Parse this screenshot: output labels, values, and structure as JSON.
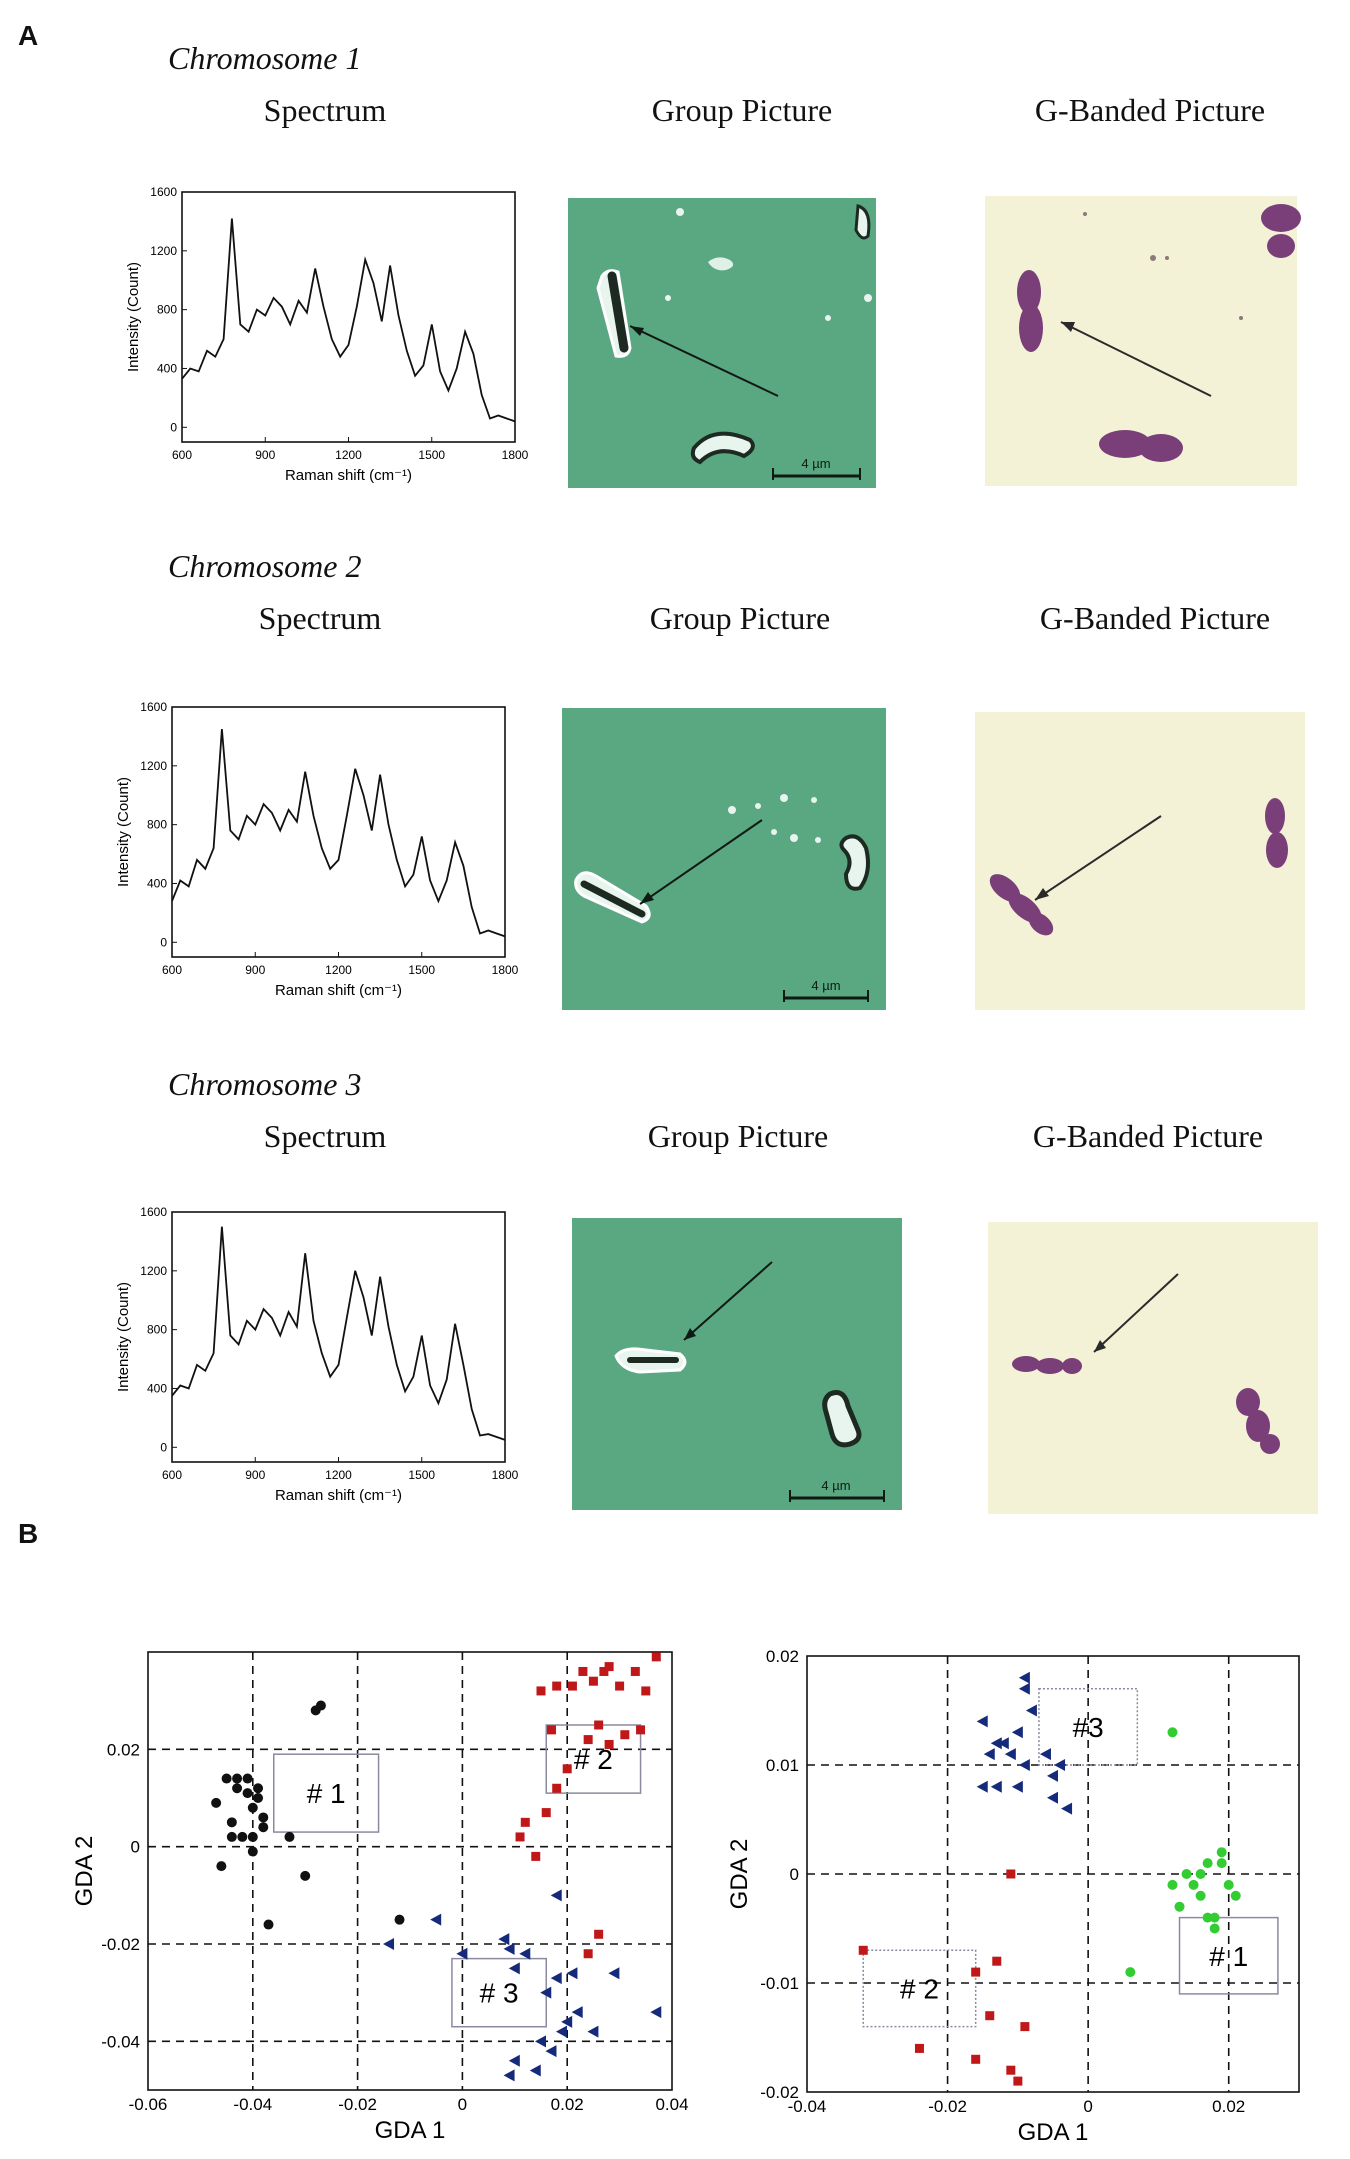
{
  "panel_a": {
    "label": "A",
    "column_titles": [
      "Spectrum",
      "Group Picture",
      "G-Banded Picture"
    ],
    "rows": [
      {
        "title": "Chromosome 1",
        "scale_label": "4 µm"
      },
      {
        "title": "Chromosome 2",
        "scale_label": "4 µm"
      },
      {
        "title": "Chromosome 3",
        "scale_label": "4 µm"
      }
    ],
    "colors": {
      "group_bg": "#5aa882",
      "gband_bg": "#f3f2d6",
      "chromosome_stain": "#7a3f78"
    }
  },
  "panel_b": {
    "label": "B"
  },
  "chart_data": [
    {
      "type": "line",
      "id": "spectrum-1",
      "xlabel": "Raman shift (cm⁻¹)",
      "ylabel": "Intensity (Count)",
      "xlim": [
        600,
        1800
      ],
      "ylim": [
        -100,
        1600
      ],
      "xticks": [
        600,
        900,
        1200,
        1500,
        1800
      ],
      "yticks": [
        0,
        400,
        800,
        1200,
        1600
      ],
      "series": [
        {
          "x": [
            600,
            630,
            660,
            690,
            720,
            750,
            780,
            810,
            840,
            870,
            900,
            930,
            960,
            990,
            1020,
            1050,
            1080,
            1110,
            1140,
            1170,
            1200,
            1230,
            1260,
            1290,
            1320,
            1350,
            1380,
            1410,
            1440,
            1470,
            1500,
            1530,
            1560,
            1590,
            1620,
            1650,
            1680,
            1710,
            1740,
            1770,
            1800
          ],
          "y": [
            330,
            400,
            380,
            520,
            480,
            600,
            1420,
            700,
            650,
            800,
            760,
            880,
            820,
            700,
            860,
            780,
            1080,
            820,
            600,
            480,
            560,
            820,
            1140,
            980,
            720,
            1100,
            760,
            520,
            350,
            420,
            700,
            380,
            250,
            400,
            650,
            500,
            220,
            60,
            80,
            60,
            40
          ]
        }
      ]
    },
    {
      "type": "line",
      "id": "spectrum-2",
      "xlabel": "Raman shift (cm⁻¹)",
      "ylabel": "Intensity (Count)",
      "xlim": [
        600,
        1800
      ],
      "ylim": [
        -100,
        1600
      ],
      "xticks": [
        600,
        900,
        1200,
        1500,
        1800
      ],
      "yticks": [
        0,
        400,
        800,
        1200,
        1600
      ],
      "series": [
        {
          "x": [
            600,
            630,
            660,
            690,
            720,
            750,
            780,
            810,
            840,
            870,
            900,
            930,
            960,
            990,
            1020,
            1050,
            1080,
            1110,
            1140,
            1170,
            1200,
            1230,
            1260,
            1290,
            1320,
            1350,
            1380,
            1410,
            1440,
            1470,
            1500,
            1530,
            1560,
            1590,
            1620,
            1650,
            1680,
            1710,
            1740,
            1770,
            1800
          ],
          "y": [
            280,
            420,
            380,
            560,
            500,
            640,
            1450,
            760,
            700,
            860,
            800,
            940,
            880,
            760,
            900,
            820,
            1160,
            860,
            640,
            500,
            560,
            860,
            1180,
            1000,
            760,
            1140,
            800,
            560,
            380,
            460,
            720,
            420,
            280,
            420,
            680,
            520,
            240,
            60,
            80,
            60,
            40
          ]
        }
      ]
    },
    {
      "type": "line",
      "id": "spectrum-3",
      "xlabel": "Raman shift (cm⁻¹)",
      "ylabel": "Intensity (Count)",
      "xlim": [
        600,
        1800
      ],
      "ylim": [
        -100,
        1600
      ],
      "xticks": [
        600,
        900,
        1200,
        1500,
        1800
      ],
      "yticks": [
        0,
        400,
        800,
        1200,
        1600
      ],
      "series": [
        {
          "x": [
            600,
            630,
            660,
            690,
            720,
            750,
            780,
            810,
            840,
            870,
            900,
            930,
            960,
            990,
            1020,
            1050,
            1080,
            1110,
            1140,
            1170,
            1200,
            1230,
            1260,
            1290,
            1320,
            1350,
            1380,
            1410,
            1440,
            1470,
            1500,
            1530,
            1560,
            1590,
            1620,
            1650,
            1680,
            1710,
            1740,
            1770,
            1800
          ],
          "y": [
            350,
            420,
            400,
            560,
            520,
            640,
            1500,
            760,
            700,
            860,
            800,
            940,
            880,
            760,
            920,
            820,
            1320,
            860,
            640,
            480,
            560,
            880,
            1200,
            1020,
            760,
            1160,
            820,
            560,
            380,
            480,
            760,
            420,
            300,
            460,
            840,
            560,
            260,
            80,
            90,
            70,
            50
          ]
        }
      ]
    },
    {
      "type": "scatter",
      "id": "gda-left",
      "xlabel": "GDA 1",
      "ylabel": "GDA 2",
      "xlim": [
        -0.06,
        0.04
      ],
      "ylim": [
        -0.05,
        0.04
      ],
      "xticks": [
        -0.06,
        -0.04,
        -0.02,
        0,
        0.02,
        0.04
      ],
      "xtick_labels": [
        "-0.06",
        "-0.04",
        "-0.02",
        "0",
        "0.02",
        "0.04"
      ],
      "yticks": [
        -0.04,
        -0.02,
        0,
        0.02
      ],
      "ytick_labels": [
        "-0.04",
        "-0.02",
        "0",
        "0.02"
      ],
      "grid": true,
      "series": [
        {
          "marker": "circle",
          "color": "#111111",
          "x": [
            -0.047,
            -0.045,
            -0.043,
            -0.044,
            -0.041,
            -0.04,
            -0.039,
            -0.042,
            -0.04,
            -0.038,
            -0.041,
            -0.044,
            -0.046,
            -0.039,
            -0.037,
            -0.043,
            -0.04,
            -0.033,
            -0.03,
            -0.028,
            -0.027,
            -0.038,
            -0.012
          ],
          "y": [
            0.009,
            0.014,
            0.014,
            0.005,
            0.011,
            0.008,
            0.01,
            0.002,
            0.002,
            0.004,
            0.014,
            0.002,
            -0.004,
            0.012,
            -0.016,
            0.012,
            -0.001,
            0.002,
            -0.006,
            0.028,
            0.029,
            0.006,
            -0.015
          ]
        },
        {
          "marker": "square",
          "color": "#c01818",
          "x": [
            0.015,
            0.018,
            0.021,
            0.023,
            0.025,
            0.027,
            0.028,
            0.03,
            0.033,
            0.035,
            0.037,
            0.017,
            0.024,
            0.026,
            0.028,
            0.031,
            0.034,
            0.02,
            0.018,
            0.016,
            0.012,
            0.011,
            0.014,
            0.026,
            0.024
          ],
          "y": [
            0.032,
            0.033,
            0.033,
            0.036,
            0.034,
            0.036,
            0.037,
            0.033,
            0.036,
            0.032,
            0.039,
            0.024,
            0.022,
            0.025,
            0.021,
            0.023,
            0.024,
            0.016,
            0.012,
            0.007,
            0.005,
            0.002,
            -0.002,
            -0.018,
            -0.022
          ]
        },
        {
          "marker": "triangle-left",
          "color": "#152a7a",
          "x": [
            -0.005,
            -0.014,
            0.0,
            0.008,
            0.009,
            0.01,
            0.012,
            0.016,
            0.018,
            0.021,
            0.022,
            0.029,
            0.025,
            0.02,
            0.019,
            0.015,
            0.017,
            0.01,
            0.009,
            0.014,
            0.037,
            0.018
          ],
          "y": [
            -0.015,
            -0.02,
            -0.022,
            -0.019,
            -0.021,
            -0.025,
            -0.022,
            -0.03,
            -0.027,
            -0.026,
            -0.034,
            -0.026,
            -0.038,
            -0.036,
            -0.038,
            -0.04,
            -0.042,
            -0.044,
            -0.047,
            -0.046,
            -0.034,
            -0.01
          ]
        }
      ],
      "annotations": [
        {
          "text": "# 1",
          "x0": -0.036,
          "x1": -0.016,
          "y0": 0.003,
          "y1": 0.019,
          "box": "solid"
        },
        {
          "text": "# 2",
          "x0": 0.016,
          "x1": 0.034,
          "y0": 0.011,
          "y1": 0.025,
          "box": "solid"
        },
        {
          "text": "# 3",
          "x0": -0.002,
          "x1": 0.016,
          "y0": -0.037,
          "y1": -0.023,
          "box": "solid"
        }
      ]
    },
    {
      "type": "scatter",
      "id": "gda-right",
      "xlabel": "GDA 1",
      "ylabel": "GDA 2",
      "xlim": [
        -0.04,
        0.03
      ],
      "ylim": [
        -0.02,
        0.02
      ],
      "xticks": [
        -0.04,
        -0.02,
        0,
        0.02
      ],
      "xtick_labels": [
        "-0.04",
        "-0.02",
        "0",
        "0.02"
      ],
      "yticks": [
        -0.02,
        -0.01,
        0,
        0.01,
        0.02
      ],
      "ytick_labels": [
        "-0.02",
        "-0.01",
        "0",
        "0.01",
        "0.02"
      ],
      "grid": true,
      "series": [
        {
          "marker": "triangle-left",
          "color": "#152a7a",
          "x": [
            -0.009,
            -0.009,
            -0.008,
            -0.015,
            -0.013,
            -0.012,
            -0.01,
            -0.014,
            -0.011,
            -0.009,
            -0.006,
            -0.005,
            -0.004,
            -0.015,
            -0.013,
            -0.01,
            -0.005,
            -0.003
          ],
          "y": [
            0.018,
            0.017,
            0.015,
            0.014,
            0.012,
            0.012,
            0.013,
            0.011,
            0.011,
            0.01,
            0.011,
            0.009,
            0.01,
            0.008,
            0.008,
            0.008,
            0.007,
            0.006
          ]
        },
        {
          "marker": "circle",
          "color": "#33cc33",
          "x": [
            0.012,
            0.012,
            0.014,
            0.015,
            0.016,
            0.016,
            0.017,
            0.018,
            0.019,
            0.019,
            0.02,
            0.021,
            0.018,
            0.017,
            0.013,
            0.006
          ],
          "y": [
            0.013,
            -0.001,
            0.0,
            -0.001,
            0.0,
            -0.002,
            -0.004,
            -0.005,
            0.001,
            0.002,
            -0.001,
            -0.002,
            -0.004,
            0.001,
            -0.003,
            -0.009
          ]
        },
        {
          "marker": "square",
          "color": "#c01818",
          "x": [
            -0.011,
            -0.032,
            -0.024,
            -0.016,
            -0.013,
            -0.014,
            -0.011,
            -0.009,
            -0.016,
            -0.01
          ],
          "y": [
            0.0,
            -0.007,
            -0.016,
            -0.009,
            -0.008,
            -0.013,
            -0.018,
            -0.014,
            -0.017,
            -0.019
          ]
        }
      ],
      "annotations": [
        {
          "text": "#3",
          "x0": -0.007,
          "x1": 0.007,
          "y0": 0.01,
          "y1": 0.017,
          "box": "dotted"
        },
        {
          "text": "# 2",
          "x0": -0.032,
          "x1": -0.016,
          "y0": -0.014,
          "y1": -0.007,
          "box": "dotted"
        },
        {
          "text": "# 1",
          "x0": 0.013,
          "x1": 0.027,
          "y0": -0.011,
          "y1": -0.004,
          "box": "solid"
        }
      ]
    }
  ]
}
